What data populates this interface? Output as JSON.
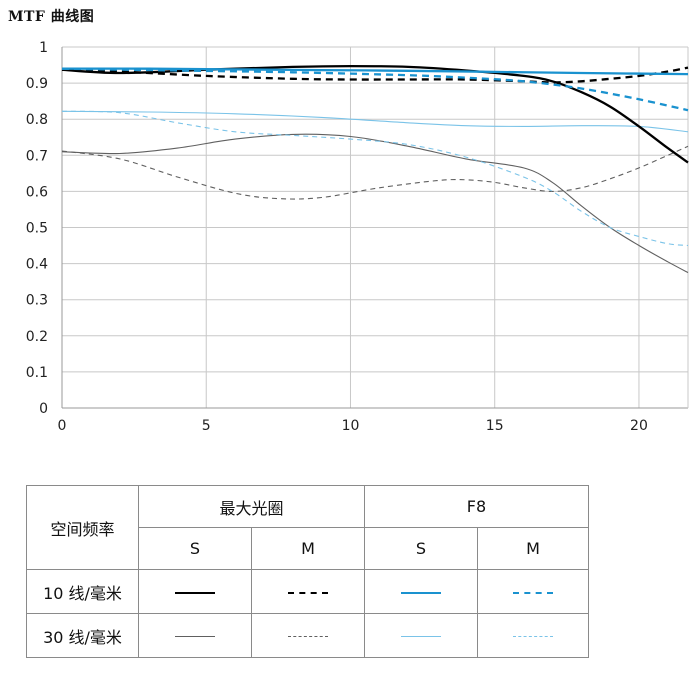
{
  "title": "MTF 曲线图",
  "chart_data": {
    "type": "line",
    "xlim": [
      0,
      21.7
    ],
    "ylim": [
      0,
      1
    ],
    "xticks": [
      0,
      5,
      10,
      15,
      20
    ],
    "yticks": [
      0,
      0.1,
      0.2,
      0.3,
      0.4,
      0.5,
      0.6,
      0.7,
      0.8,
      0.9,
      1
    ],
    "ytick_labels": [
      "0",
      "0.1",
      "0.2",
      "0.3",
      "0.4",
      "0.5",
      "0.6",
      "0.7",
      "0.8",
      "0.9",
      "1"
    ],
    "grid": true,
    "series": [
      {
        "group": "最大光圈",
        "freq": "10 线/毫米",
        "type": "S",
        "color": "#000000",
        "dash": "",
        "width": 2.3,
        "x": [
          0,
          2,
          5,
          8,
          10,
          12,
          14,
          16,
          17,
          18,
          19,
          20,
          21,
          21.7
        ],
        "y": [
          0.937,
          0.928,
          0.937,
          0.945,
          0.947,
          0.945,
          0.935,
          0.92,
          0.905,
          0.875,
          0.835,
          0.78,
          0.72,
          0.68
        ]
      },
      {
        "group": "最大光圈",
        "freq": "10 线/毫米",
        "type": "M",
        "color": "#000000",
        "dash": "7,5",
        "width": 2.3,
        "x": [
          0,
          2,
          5,
          8,
          10,
          12,
          14,
          16,
          17,
          18,
          19,
          20,
          21,
          21.7
        ],
        "y": [
          0.937,
          0.932,
          0.92,
          0.912,
          0.91,
          0.91,
          0.91,
          0.905,
          0.902,
          0.905,
          0.912,
          0.92,
          0.932,
          0.943
        ]
      },
      {
        "group": "F8",
        "freq": "10 线/毫米",
        "type": "S",
        "color": "#1a92cf",
        "dash": "",
        "width": 2.3,
        "x": [
          0,
          3,
          6,
          9,
          12,
          15,
          18,
          21.7
        ],
        "y": [
          0.94,
          0.94,
          0.938,
          0.936,
          0.934,
          0.931,
          0.928,
          0.925
        ]
      },
      {
        "group": "F8",
        "freq": "10 线/毫米",
        "type": "M",
        "color": "#1a92cf",
        "dash": "7,5",
        "width": 2.3,
        "x": [
          0,
          4,
          8,
          12,
          14,
          16,
          18,
          20,
          21.7
        ],
        "y": [
          0.94,
          0.935,
          0.93,
          0.922,
          0.915,
          0.905,
          0.885,
          0.855,
          0.825
        ]
      },
      {
        "group": "最大光圈",
        "freq": "30 线/毫米",
        "type": "S",
        "color": "#606060",
        "dash": "",
        "width": 1.1,
        "x": [
          0,
          2,
          4,
          6,
          8,
          10,
          12,
          14,
          16,
          17,
          18,
          19,
          20,
          21,
          21.7
        ],
        "y": [
          0.71,
          0.705,
          0.72,
          0.745,
          0.758,
          0.752,
          0.725,
          0.69,
          0.665,
          0.625,
          0.56,
          0.5,
          0.45,
          0.405,
          0.375
        ]
      },
      {
        "group": "最大光圈",
        "freq": "30 线/毫米",
        "type": "M",
        "color": "#606060",
        "dash": "5,4",
        "width": 1.1,
        "x": [
          0,
          2,
          4,
          6,
          7.5,
          9,
          11,
          13,
          14,
          15,
          16,
          17,
          18,
          19,
          20,
          21,
          21.7
        ],
        "y": [
          0.712,
          0.69,
          0.64,
          0.595,
          0.58,
          0.583,
          0.61,
          0.63,
          0.632,
          0.625,
          0.61,
          0.6,
          0.61,
          0.635,
          0.665,
          0.7,
          0.725
        ]
      },
      {
        "group": "F8",
        "freq": "30 线/毫米",
        "type": "S",
        "color": "#7ac3e8",
        "dash": "",
        "width": 1.1,
        "x": [
          0,
          3,
          6,
          9,
          12,
          14,
          16,
          18,
          20,
          21.7
        ],
        "y": [
          0.822,
          0.82,
          0.815,
          0.805,
          0.79,
          0.782,
          0.78,
          0.782,
          0.78,
          0.765
        ]
      },
      {
        "group": "F8",
        "freq": "30 线/毫米",
        "type": "M",
        "color": "#7ac3e8",
        "dash": "5,4",
        "width": 1.1,
        "x": [
          0,
          2,
          4,
          6,
          8,
          10,
          12,
          14,
          16,
          17,
          18,
          19,
          20,
          21,
          21.7
        ],
        "y": [
          0.822,
          0.818,
          0.79,
          0.765,
          0.755,
          0.745,
          0.73,
          0.695,
          0.64,
          0.6,
          0.545,
          0.5,
          0.475,
          0.455,
          0.45
        ]
      }
    ]
  },
  "legend": {
    "header_row_label": "空间频率",
    "group1": "最大光圈",
    "group2": "F8",
    "s": "S",
    "m": "M",
    "row1": "10 线/毫米",
    "row2": "30 线/毫米",
    "colors": {
      "black": "#000000",
      "gray": "#606060",
      "blue": "#1a92cf",
      "lightblue": "#7ac3e8"
    }
  }
}
